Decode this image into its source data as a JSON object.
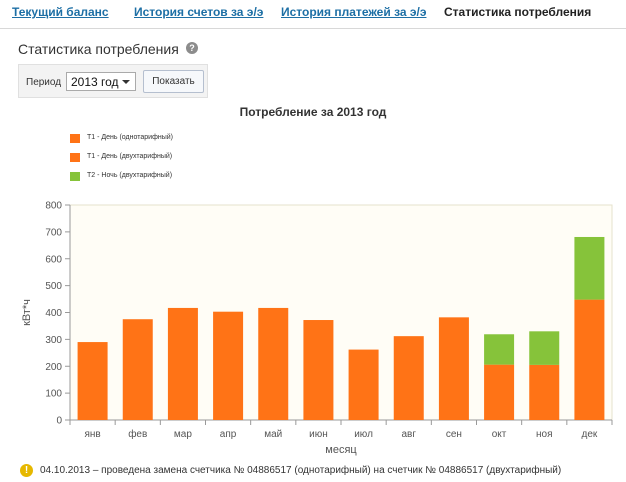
{
  "tabs": [
    {
      "label": "Текущий баланс"
    },
    {
      "label": "История счетов за э/э"
    },
    {
      "label": "История платежей за э/э"
    },
    {
      "label": "Статистика потребления"
    }
  ],
  "page": {
    "title": "Статистика потребления",
    "help_icon": "?"
  },
  "filter": {
    "period_label": "Период",
    "period_value": "2013 год",
    "show_button": "Показать"
  },
  "chart_data": {
    "type": "bar",
    "title": "Потребление за 2013 год",
    "xlabel": "месяц",
    "ylabel": "кВт*ч",
    "ylim": [
      0,
      800
    ],
    "yticks": [
      0,
      100,
      200,
      300,
      400,
      500,
      600,
      700,
      800
    ],
    "categories": [
      "янв",
      "фев",
      "мар",
      "апр",
      "май",
      "июн",
      "июл",
      "авг",
      "сен",
      "окт",
      "ноя",
      "дек"
    ],
    "stacked": true,
    "grid": false,
    "legend_position": "top-left",
    "series": [
      {
        "name": "Т1 - День (однотарифный)",
        "color": "#ff7316",
        "values": [
          290,
          375,
          417,
          403,
          417,
          372,
          262,
          312,
          382,
          0,
          0,
          0
        ]
      },
      {
        "name": "Т1 - День (двухтарифный)",
        "color": "#ff7316",
        "values": [
          0,
          0,
          0,
          0,
          0,
          0,
          0,
          0,
          0,
          206,
          205,
          448
        ]
      },
      {
        "name": "Т2 - Ночь (двухтарифный)",
        "color": "#86c33a",
        "values": [
          0,
          0,
          0,
          0,
          0,
          0,
          0,
          0,
          0,
          113,
          125,
          233
        ]
      }
    ]
  },
  "note": {
    "icon": "warning-icon",
    "text": "04.10.2013 – проведена замена счетчика № 04886517 (однотарифный) на счетчик № 04886517 (двухтарифный)"
  }
}
